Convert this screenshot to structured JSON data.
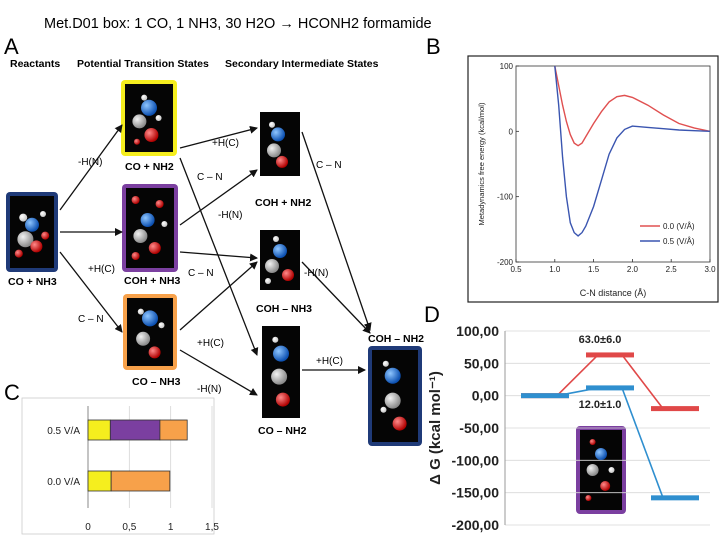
{
  "slide_title": "Met.D01 box: 1 CO, 1 NH3, 30 H2O → HCONH2 formamide",
  "panel_letters": {
    "a": "A",
    "b": "B",
    "c": "C",
    "d": "D"
  },
  "panel_a": {
    "headers": {
      "reactants": "Reactants",
      "pts": "Potential Transition States",
      "sis": "Secondary Intermediate States"
    },
    "states": {
      "reactant": "CO + NH3",
      "ts1": "CO + NH2",
      "ts2": "COH + NH3",
      "ts3": "CO – NH3",
      "si1": "COH + NH2",
      "si2": "COH – NH3",
      "si3": "CO – NH2",
      "product": "COH – NH2"
    },
    "arrow_labels": {
      "hn_top": "-H(N)",
      "hc_mid": "+H(C)",
      "cn_low": "C – N",
      "hc_ts1": "+H(C)",
      "cn_ts1": "C – N",
      "hn_ts2": "-H(N)",
      "cn_ts2": "C – N",
      "hc_ts3": "+H(C)",
      "hn_ts3": "-H(N)",
      "cn_si1": "C – N",
      "hn_si2": "-H(N)",
      "hc_si3": "+H(C)"
    },
    "box_colors": {
      "reactant": "#1f3a78",
      "ts1": "#f5ee1e",
      "ts2": "#7b3fa0",
      "ts3": "#f7a14a",
      "product": "#1f3a78"
    }
  },
  "panel_b": {
    "chart_data": {
      "type": "line",
      "xlabel": "C-N distance (Å)",
      "ylabel": "Metadynamics free energy (kcal/mol)",
      "xlim": [
        0.5,
        3.0
      ],
      "ylim": [
        -200,
        100
      ],
      "xticks": [
        "0.5",
        "1.0",
        "1.5",
        "2.0",
        "2.5",
        "3.0"
      ],
      "yticks": [
        "100",
        "0",
        "-100",
        "-200"
      ],
      "legend_position": "bottom-right",
      "series": [
        {
          "name": "0.0 (V/Å)",
          "color": "#e05050",
          "x": [
            1.0,
            1.05,
            1.1,
            1.15,
            1.2,
            1.25,
            1.3,
            1.35,
            1.4,
            1.5,
            1.6,
            1.7,
            1.8,
            1.9,
            2.0,
            2.2,
            2.4,
            2.6,
            2.8,
            3.0
          ],
          "y": [
            100,
            70,
            40,
            15,
            -5,
            -18,
            -22,
            -18,
            -8,
            12,
            30,
            45,
            53,
            55,
            52,
            40,
            25,
            12,
            5,
            0
          ]
        },
        {
          "name": "0.5 (V/Å)",
          "color": "#3a55b0",
          "x": [
            1.0,
            1.05,
            1.1,
            1.15,
            1.2,
            1.25,
            1.3,
            1.35,
            1.4,
            1.5,
            1.6,
            1.7,
            1.8,
            1.9,
            2.0,
            2.2,
            2.4,
            2.6,
            2.8,
            3.0
          ],
          "y": [
            100,
            40,
            -40,
            -100,
            -140,
            -155,
            -160,
            -155,
            -145,
            -115,
            -75,
            -35,
            -10,
            3,
            8,
            6,
            4,
            2,
            1,
            0
          ]
        }
      ]
    }
  },
  "panel_c": {
    "chart_data": {
      "type": "bar",
      "orientation": "horizontal",
      "categories": [
        "0.5 V/A",
        "0.0 V/A"
      ],
      "xlim": [
        0,
        1.5
      ],
      "xticks": [
        "0",
        "0,5",
        "1",
        "1,5"
      ],
      "series": [
        {
          "color": "#f5ee1e",
          "values": [
            0.27,
            0.28
          ]
        },
        {
          "color": "#7b3fa0",
          "values": [
            0.6,
            0.0
          ]
        },
        {
          "color": "#f7a14a",
          "values": [
            0.33,
            0.71
          ]
        }
      ]
    }
  },
  "panel_d": {
    "chart_data": {
      "type": "line",
      "ylabel": "Δ G (kcal mol⁻¹)",
      "ylim": [
        -200,
        100
      ],
      "yticks": [
        "100,00",
        "50,00",
        "0,00",
        "-50,00",
        "-100,00",
        "-150,00",
        "-200,00"
      ],
      "annotations": [
        "63.0±6.0",
        "12.0±1.0"
      ],
      "series": [
        {
          "color": "#e04848",
          "x": [
            1,
            2,
            3
          ],
          "y": [
            0,
            63,
            -20
          ]
        },
        {
          "color": "#2f8fcf",
          "x": [
            1,
            2,
            3
          ],
          "y": [
            0,
            12,
            -158
          ]
        }
      ]
    }
  }
}
